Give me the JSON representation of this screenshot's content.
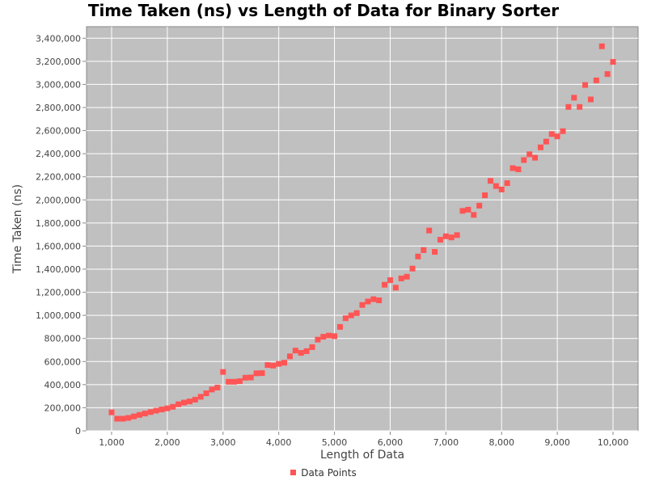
{
  "chart_data": {
    "type": "scatter",
    "title": "Time Taken (ns) vs Length of Data for Binary Sorter",
    "xlabel": "Length of Data",
    "ylabel": "Time Taken (ns)",
    "xlim": [
      550,
      10450
    ],
    "ylim": [
      0,
      3500000
    ],
    "x_ticks": [
      "1,000",
      "2,000",
      "3,000",
      "4,000",
      "5,000",
      "6,000",
      "7,000",
      "8,000",
      "9,000",
      "10,000"
    ],
    "y_ticks": [
      "0",
      "200,000",
      "400,000",
      "600,000",
      "800,000",
      "1,000,000",
      "1,200,000",
      "1,400,000",
      "1,600,000",
      "1,800,000",
      "2,000,000",
      "2,200,000",
      "2,400,000",
      "2,600,000",
      "2,800,000",
      "3,000,000",
      "3,200,000",
      "3,400,000"
    ],
    "grid": true,
    "legend_position": "bottom",
    "colors": {
      "series": "#ff5555",
      "plot_background": "#c0c0c0",
      "grid": "#ffffff"
    },
    "series": [
      {
        "name": "Data Points",
        "x": [
          1000,
          1100,
          1200,
          1300,
          1400,
          1500,
          1600,
          1700,
          1800,
          1900,
          2000,
          2100,
          2200,
          2300,
          2400,
          2500,
          2600,
          2700,
          2800,
          2900,
          3000,
          3100,
          3200,
          3300,
          3400,
          3500,
          3600,
          3700,
          3800,
          3900,
          4000,
          4100,
          4200,
          4300,
          4400,
          4500,
          4600,
          4700,
          4800,
          4900,
          5000,
          5100,
          5200,
          5300,
          5400,
          5500,
          5600,
          5700,
          5800,
          5900,
          6000,
          6100,
          6200,
          6300,
          6400,
          6500,
          6600,
          6700,
          6800,
          6900,
          7000,
          7100,
          7200,
          7300,
          7400,
          7500,
          7600,
          7700,
          7800,
          7900,
          8000,
          8100,
          8200,
          8300,
          8400,
          8500,
          8600,
          8700,
          8800,
          8900,
          9000,
          9100,
          9200,
          9300,
          9400,
          9500,
          9600,
          9700,
          9800,
          9900,
          10000
        ],
        "y": [
          160000,
          105000,
          105000,
          112000,
          125000,
          138000,
          150000,
          163000,
          175000,
          185000,
          195000,
          208000,
          230000,
          245000,
          255000,
          270000,
          295000,
          325000,
          358000,
          375000,
          510000,
          425000,
          425000,
          430000,
          460000,
          462000,
          498000,
          500000,
          570000,
          565000,
          580000,
          590000,
          645000,
          695000,
          675000,
          690000,
          725000,
          790000,
          815000,
          825000,
          820000,
          900000,
          975000,
          1000000,
          1020000,
          1090000,
          1120000,
          1140000,
          1130000,
          1265000,
          1305000,
          1240000,
          1320000,
          1335000,
          1405000,
          1510000,
          1565000,
          1735000,
          1550000,
          1655000,
          1685000,
          1675000,
          1695000,
          1905000,
          1915000,
          1870000,
          1950000,
          2040000,
          2165000,
          2120000,
          2090000,
          2145000,
          2275000,
          2265000,
          2345000,
          2395000,
          2365000,
          2455000,
          2505000,
          2570000,
          2550000,
          2595000,
          2805000,
          2885000,
          2805000,
          2995000,
          2870000,
          3035000,
          3330000,
          3090000,
          3195000
        ]
      }
    ]
  },
  "legend": {
    "label": "Data Points"
  }
}
